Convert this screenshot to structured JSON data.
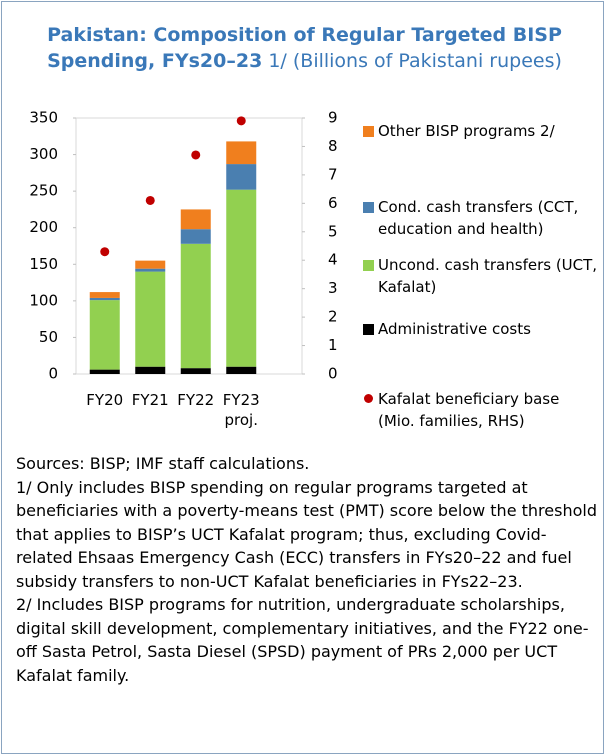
{
  "chart_data": {
    "type": "bar",
    "stacked": true,
    "title": "Pakistan: Composition of Regular Targeted BISP Spending, FYs20–23",
    "subtitle": "1/ (Billions of Pakistani rupees)",
    "categories": [
      "FY20",
      "FY21",
      "FY22",
      "FY23 proj."
    ],
    "series": [
      {
        "name": "Administrative costs",
        "color": "#000000",
        "values": [
          6,
          10,
          8,
          10
        ]
      },
      {
        "name": "Uncond. cash transfers (UCT, Kafalat)",
        "color": "#92d050",
        "values": [
          95,
          130,
          170,
          242
        ]
      },
      {
        "name": "Cond. cash transfers (CCT, education and health)",
        "color": "#4a7fb0",
        "values": [
          3,
          4,
          20,
          35
        ]
      },
      {
        "name": "Other BISP programs 2/",
        "color": "#f07f1e",
        "values": [
          8,
          11,
          27,
          31
        ]
      },
      {
        "name": "Kafalat beneficiary base (Mio. families, RHS)",
        "color": "#c00000",
        "type": "scatter",
        "axis": "y2",
        "values": [
          4.3,
          6.1,
          7.7,
          8.9
        ]
      }
    ],
    "ylim": [
      0,
      350
    ],
    "yticks": [
      0,
      50,
      100,
      150,
      200,
      250,
      300,
      350
    ],
    "y2lim": [
      0,
      9
    ],
    "y2ticks": [
      0,
      1,
      2,
      3,
      4,
      5,
      6,
      7,
      8,
      9
    ],
    "legend": "right",
    "sources": "Sources: BISP; IMF staff calculations.",
    "notes": [
      "1/ Only includes BISP spending on regular programs targeted at beneficiaries with a poverty-means test (PMT) score below the threshold that applies to BISP’s UCT Kafalat program; thus, excluding Covid-related Ehsaas Emergency Cash (ECC) transfers in FYs20–22 and fuel subsidy transfers to non-UCT Kafalat beneficiaries in FYs22–23.",
      "2/ Includes BISP programs for nutrition, undergraduate scholarships, digital skill development, complementary initiatives, and the FY22 one-off Sasta Petrol, Sasta Diesel (SPSD) payment of PRs 2,000 per UCT Kafalat family."
    ]
  }
}
